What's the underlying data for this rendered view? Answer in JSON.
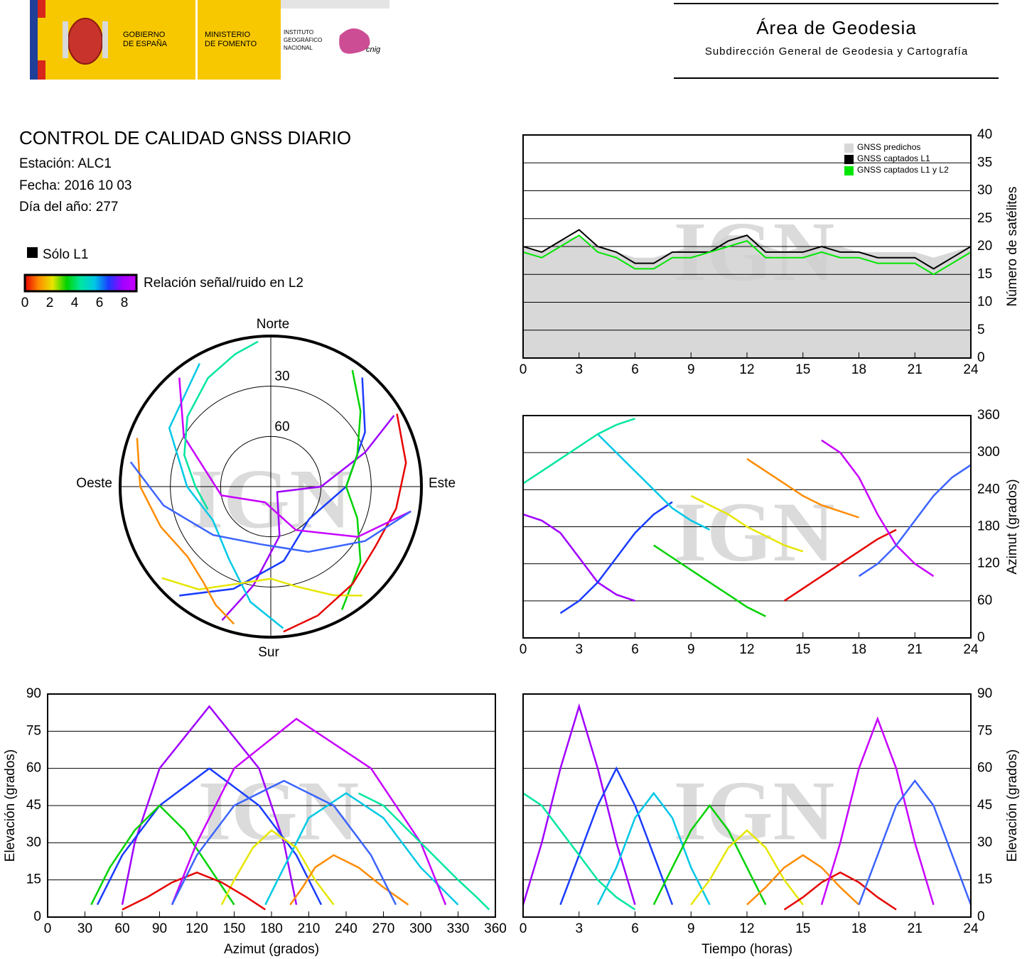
{
  "header": {
    "gov": [
      "GOBIERNO",
      "DE ESPAÑA"
    ],
    "ministry": [
      "MINISTERIO",
      "DE FOMENTO"
    ],
    "institute": [
      "INSTITUTO",
      "GEOGRÁFICO",
      "NACIONAL"
    ],
    "cnig": "cnig",
    "title": "Área de Geodesia",
    "subtitle": "Subdirección General de Geodesia y Cartografía"
  },
  "report": {
    "title": "CONTROL DE CALIDAD GNSS DIARIO",
    "station": "Estación: ALC1",
    "date": "Fecha: 2016 10 03",
    "doy": "Día del año: 277"
  },
  "legend": {
    "l1_only": "Sólo L1",
    "snr_label": "Relación señal/ruido en L2",
    "snr_ticks": [
      0,
      2,
      4,
      6,
      8
    ],
    "colors": [
      "#e60000",
      "#ff8c00",
      "#e6e600",
      "#00d200",
      "#00e6a0",
      "#00c8e6",
      "#1a3cff",
      "#a000ff",
      "#c800ff"
    ]
  },
  "chart_data": [
    {
      "type": "area",
      "watermark": "IGN",
      "ylabel": "Número de satélites",
      "yaxis_side": "right",
      "grid": true,
      "xlim": [
        0,
        24
      ],
      "xticks": [
        0,
        3,
        6,
        9,
        12,
        15,
        18,
        21,
        24
      ],
      "ylim": [
        0,
        40
      ],
      "yticks": [
        0,
        5,
        10,
        15,
        20,
        25,
        30,
        35,
        40
      ],
      "x": [
        0,
        1,
        2,
        3,
        4,
        5,
        6,
        7,
        8,
        9,
        10,
        11,
        12,
        13,
        14,
        15,
        16,
        17,
        18,
        19,
        20,
        21,
        22,
        23,
        24
      ],
      "series": [
        {
          "name": "GNSS predichos",
          "color": "#d8d8d8",
          "values": [
            20,
            19,
            21,
            22,
            20,
            19,
            18,
            18,
            19,
            20,
            20,
            22,
            22,
            20,
            19,
            20,
            20,
            20,
            19,
            19,
            19,
            19,
            18,
            19,
            20
          ]
        },
        {
          "name": "GNSS captados L1",
          "color": "#000000",
          "values": [
            20,
            19,
            21,
            23,
            20,
            19,
            17,
            17,
            19,
            19,
            19,
            21,
            22,
            19,
            19,
            19,
            20,
            19,
            19,
            18,
            18,
            18,
            16,
            18,
            20
          ]
        },
        {
          "name": "GNSS captados L1 y L2",
          "color": "#00e600",
          "values": [
            19,
            18,
            20,
            22,
            19,
            18,
            16,
            16,
            18,
            18,
            19,
            20,
            21,
            18,
            18,
            18,
            19,
            18,
            18,
            17,
            17,
            17,
            15,
            17,
            19
          ]
        }
      ]
    },
    {
      "type": "polar",
      "watermark": "IGN",
      "directions": {
        "north": "Norte",
        "south": "Sur",
        "east": "Este",
        "west": "Oeste"
      },
      "rings": [
        30,
        60
      ],
      "series": [
        {
          "color": "#a000ff",
          "x": [
            200,
            190,
            170,
            130,
            90,
            70,
            60
          ],
          "values": [
            5,
            30,
            60,
            85,
            60,
            30,
            5
          ]
        },
        {
          "color": "#1a3cff",
          "x": [
            40,
            60,
            90,
            130,
            170,
            200,
            220
          ],
          "values": [
            5,
            25,
            45,
            60,
            45,
            25,
            5
          ]
        },
        {
          "color": "#00c8e6",
          "x": [
            330,
            300,
            270,
            240,
            210,
            190,
            175
          ],
          "values": [
            5,
            20,
            40,
            50,
            40,
            20,
            5
          ]
        },
        {
          "color": "#00d200",
          "x": [
            150,
            130,
            110,
            90,
            70,
            50,
            35
          ],
          "values": [
            5,
            20,
            35,
            45,
            35,
            20,
            5
          ]
        },
        {
          "color": "#e6e600",
          "x": [
            230,
            215,
            200,
            180,
            165,
            150,
            140
          ],
          "values": [
            5,
            15,
            28,
            35,
            28,
            15,
            5
          ]
        },
        {
          "color": "#ff8c00",
          "x": [
            290,
            270,
            250,
            230,
            215,
            205,
            195
          ],
          "values": [
            5,
            12,
            20,
            25,
            20,
            12,
            5
          ]
        },
        {
          "color": "#e60000",
          "x": [
            60,
            80,
            100,
            120,
            140,
            160,
            175
          ],
          "values": [
            3,
            8,
            14,
            18,
            14,
            8,
            3
          ]
        },
        {
          "color": "#c800ff",
          "x": [
            320,
            300,
            260,
            200,
            150,
            120,
            100
          ],
          "values": [
            5,
            30,
            60,
            80,
            60,
            30,
            5
          ]
        },
        {
          "color": "#3c64ff",
          "x": [
            100,
            120,
            150,
            190,
            230,
            260,
            280
          ],
          "values": [
            5,
            25,
            45,
            55,
            45,
            25,
            5
          ]
        },
        {
          "color": "#00e6a0",
          "x": [
            250,
            270,
            290,
            310,
            330,
            345,
            355
          ],
          "values": [
            50,
            45,
            35,
            25,
            15,
            8,
            3
          ]
        }
      ]
    },
    {
      "type": "line",
      "watermark": "IGN",
      "ylabel": "Azimut (grados)",
      "yaxis_side": "right",
      "grid": true,
      "xlim": [
        0,
        24
      ],
      "xticks": [
        0,
        3,
        6,
        9,
        12,
        15,
        18,
        21,
        24
      ],
      "ylim": [
        0,
        360
      ],
      "yticks": [
        0,
        60,
        120,
        180,
        240,
        300,
        360
      ],
      "series": [
        {
          "color": "#a000ff",
          "x": [
            0,
            1,
            2,
            3,
            4,
            5,
            6
          ],
          "values": [
            200,
            190,
            170,
            130,
            90,
            70,
            60
          ]
        },
        {
          "color": "#1a3cff",
          "x": [
            2,
            3,
            4,
            5,
            6,
            7,
            8
          ],
          "values": [
            40,
            60,
            90,
            130,
            170,
            200,
            220
          ]
        },
        {
          "color": "#00c8e6",
          "x": [
            4,
            5,
            6,
            7,
            8,
            9,
            10
          ],
          "values": [
            330,
            300,
            270,
            240,
            210,
            190,
            175
          ]
        },
        {
          "color": "#00d200",
          "x": [
            7,
            8,
            9,
            10,
            11,
            12,
            13
          ],
          "values": [
            150,
            130,
            110,
            90,
            70,
            50,
            35
          ]
        },
        {
          "color": "#e6e600",
          "x": [
            9,
            10,
            11,
            12,
            13,
            14,
            15
          ],
          "values": [
            230,
            215,
            200,
            180,
            165,
            150,
            140
          ]
        },
        {
          "color": "#ff8c00",
          "x": [
            12,
            13,
            14,
            15,
            16,
            17,
            18
          ],
          "values": [
            290,
            270,
            250,
            230,
            215,
            205,
            195
          ]
        },
        {
          "color": "#e60000",
          "x": [
            14,
            15,
            16,
            17,
            18,
            19,
            20
          ],
          "values": [
            60,
            80,
            100,
            120,
            140,
            160,
            175
          ]
        },
        {
          "color": "#c800ff",
          "x": [
            16,
            17,
            18,
            19,
            20,
            21,
            22
          ],
          "values": [
            320,
            300,
            260,
            200,
            150,
            120,
            100
          ]
        },
        {
          "color": "#3c64ff",
          "x": [
            18,
            19,
            20,
            21,
            22,
            23,
            24
          ],
          "values": [
            100,
            120,
            150,
            190,
            230,
            260,
            280
          ]
        },
        {
          "color": "#00e6a0",
          "x": [
            0,
            1,
            2,
            3,
            4,
            5,
            6
          ],
          "values": [
            250,
            270,
            290,
            310,
            330,
            345,
            355
          ]
        }
      ]
    },
    {
      "type": "line",
      "watermark": "IGN",
      "xlabel": "Azimut (grados)",
      "ylabel": "Elevación (grados)",
      "yaxis_side": "left",
      "grid": true,
      "xlim": [
        0,
        360
      ],
      "xticks": [
        0,
        30,
        60,
        90,
        120,
        150,
        180,
        210,
        240,
        270,
        300,
        330,
        360
      ],
      "ylim": [
        0,
        90
      ],
      "yticks": [
        0,
        15,
        30,
        45,
        60,
        75,
        90
      ],
      "series": [
        {
          "color": "#a000ff",
          "x": [
            200,
            190,
            170,
            130,
            90,
            70,
            60
          ],
          "values": [
            5,
            30,
            60,
            85,
            60,
            30,
            5
          ]
        },
        {
          "color": "#1a3cff",
          "x": [
            40,
            60,
            90,
            130,
            170,
            200,
            220
          ],
          "values": [
            5,
            25,
            45,
            60,
            45,
            25,
            5
          ]
        },
        {
          "color": "#00c8e6",
          "x": [
            330,
            300,
            270,
            240,
            210,
            190,
            175
          ],
          "values": [
            5,
            20,
            40,
            50,
            40,
            20,
            5
          ]
        },
        {
          "color": "#00d200",
          "x": [
            150,
            130,
            110,
            90,
            70,
            50,
            35
          ],
          "values": [
            5,
            20,
            35,
            45,
            35,
            20,
            5
          ]
        },
        {
          "color": "#e6e600",
          "x": [
            230,
            215,
            200,
            180,
            165,
            150,
            140
          ],
          "values": [
            5,
            15,
            28,
            35,
            28,
            15,
            5
          ]
        },
        {
          "color": "#ff8c00",
          "x": [
            290,
            270,
            250,
            230,
            215,
            205,
            195
          ],
          "values": [
            5,
            12,
            20,
            25,
            20,
            12,
            5
          ]
        },
        {
          "color": "#e60000",
          "x": [
            60,
            80,
            100,
            120,
            140,
            160,
            175
          ],
          "values": [
            3,
            8,
            14,
            18,
            14,
            8,
            3
          ]
        },
        {
          "color": "#c800ff",
          "x": [
            320,
            300,
            260,
            200,
            150,
            120,
            100
          ],
          "values": [
            5,
            30,
            60,
            80,
            60,
            30,
            5
          ]
        },
        {
          "color": "#3c64ff",
          "x": [
            100,
            120,
            150,
            190,
            230,
            260,
            280
          ],
          "values": [
            5,
            25,
            45,
            55,
            45,
            25,
            5
          ]
        },
        {
          "color": "#00e6a0",
          "x": [
            250,
            270,
            290,
            310,
            330,
            345,
            355
          ],
          "values": [
            50,
            45,
            35,
            25,
            15,
            8,
            3
          ]
        }
      ]
    },
    {
      "type": "line",
      "watermark": "IGN",
      "xlabel": "Tiempo (horas)",
      "ylabel": "Elevación (grados)",
      "yaxis_side": "right",
      "grid": true,
      "xlim": [
        0,
        24
      ],
      "xticks": [
        0,
        3,
        6,
        9,
        12,
        15,
        18,
        21,
        24
      ],
      "ylim": [
        0,
        90
      ],
      "yticks": [
        0,
        15,
        30,
        45,
        60,
        75,
        90
      ],
      "series": [
        {
          "color": "#a000ff",
          "x": [
            0,
            1,
            2,
            3,
            4,
            5,
            6
          ],
          "values": [
            5,
            30,
            60,
            85,
            60,
            30,
            5
          ]
        },
        {
          "color": "#1a3cff",
          "x": [
            2,
            3,
            4,
            5,
            6,
            7,
            8
          ],
          "values": [
            5,
            25,
            45,
            60,
            45,
            25,
            5
          ]
        },
        {
          "color": "#00c8e6",
          "x": [
            4,
            5,
            6,
            7,
            8,
            9,
            10
          ],
          "values": [
            5,
            20,
            40,
            50,
            40,
            20,
            5
          ]
        },
        {
          "color": "#00d200",
          "x": [
            7,
            8,
            9,
            10,
            11,
            12,
            13
          ],
          "values": [
            5,
            20,
            35,
            45,
            35,
            20,
            5
          ]
        },
        {
          "color": "#e6e600",
          "x": [
            9,
            10,
            11,
            12,
            13,
            14,
            15
          ],
          "values": [
            5,
            15,
            28,
            35,
            28,
            15,
            5
          ]
        },
        {
          "color": "#ff8c00",
          "x": [
            12,
            13,
            14,
            15,
            16,
            17,
            18
          ],
          "values": [
            5,
            12,
            20,
            25,
            20,
            12,
            5
          ]
        },
        {
          "color": "#e60000",
          "x": [
            14,
            15,
            16,
            17,
            18,
            19,
            20
          ],
          "values": [
            3,
            8,
            14,
            18,
            14,
            8,
            3
          ]
        },
        {
          "color": "#c800ff",
          "x": [
            16,
            17,
            18,
            19,
            20,
            21,
            22
          ],
          "values": [
            5,
            30,
            60,
            80,
            60,
            30,
            5
          ]
        },
        {
          "color": "#3c64ff",
          "x": [
            18,
            19,
            20,
            21,
            22,
            23,
            24
          ],
          "values": [
            5,
            25,
            45,
            55,
            45,
            25,
            5
          ]
        },
        {
          "color": "#00e6a0",
          "x": [
            0,
            1,
            2,
            3,
            4,
            5,
            6
          ],
          "values": [
            50,
            45,
            35,
            25,
            15,
            8,
            3
          ]
        }
      ]
    }
  ]
}
